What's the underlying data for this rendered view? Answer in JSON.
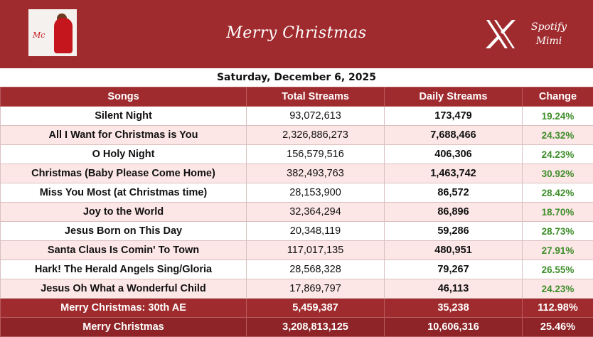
{
  "header": {
    "title": "Merry Christmas",
    "cover_script": "Mc",
    "brand_line1": "Spotify",
    "brand_line2": "Mimi",
    "logo_icon": "x-logo-icon",
    "accent_color": "#a02b2e"
  },
  "date": "Saturday, December 6, 2025",
  "table": {
    "columns": [
      "Songs",
      "Total Streams",
      "Daily Streams",
      "Change"
    ],
    "rows": [
      {
        "song": "Silent Night",
        "total": "93,072,613",
        "daily": "173,479",
        "change": "19.24%"
      },
      {
        "song": "All I Want for Christmas is You",
        "total": "2,326,886,273",
        "daily": "7,688,466",
        "change": "24.32%"
      },
      {
        "song": "O Holy Night",
        "total": "156,579,516",
        "daily": "406,306",
        "change": "24.23%"
      },
      {
        "song": "Christmas (Baby Please Come Home)",
        "total": "382,493,763",
        "daily": "1,463,742",
        "change": "30.92%"
      },
      {
        "song": "Miss You Most (at Christmas time)",
        "total": "28,153,900",
        "daily": "86,572",
        "change": "28.42%"
      },
      {
        "song": "Joy to the World",
        "total": "32,364,294",
        "daily": "86,896",
        "change": "18.70%"
      },
      {
        "song": "Jesus Born on This Day",
        "total": "20,348,119",
        "daily": "59,286",
        "change": "28.73%"
      },
      {
        "song": "Santa Claus Is Comin' To Town",
        "total": "117,017,135",
        "daily": "480,951",
        "change": "27.91%"
      },
      {
        "song": "Hark! The Herald Angels Sing/Gloria",
        "total": "28,568,328",
        "daily": "79,267",
        "change": "26.55%"
      },
      {
        "song": "Jesus Oh What a Wonderful Child",
        "total": "17,869,797",
        "daily": "46,113",
        "change": "24.23%"
      }
    ],
    "totals": [
      {
        "song": "Merry Christmas: 30th AE",
        "total": "5,459,387",
        "daily": "35,238",
        "change": "112.98%"
      },
      {
        "song": "Merry Christmas",
        "total": "3,208,813,125",
        "daily": "10,606,316",
        "change": "25.46%"
      }
    ]
  }
}
